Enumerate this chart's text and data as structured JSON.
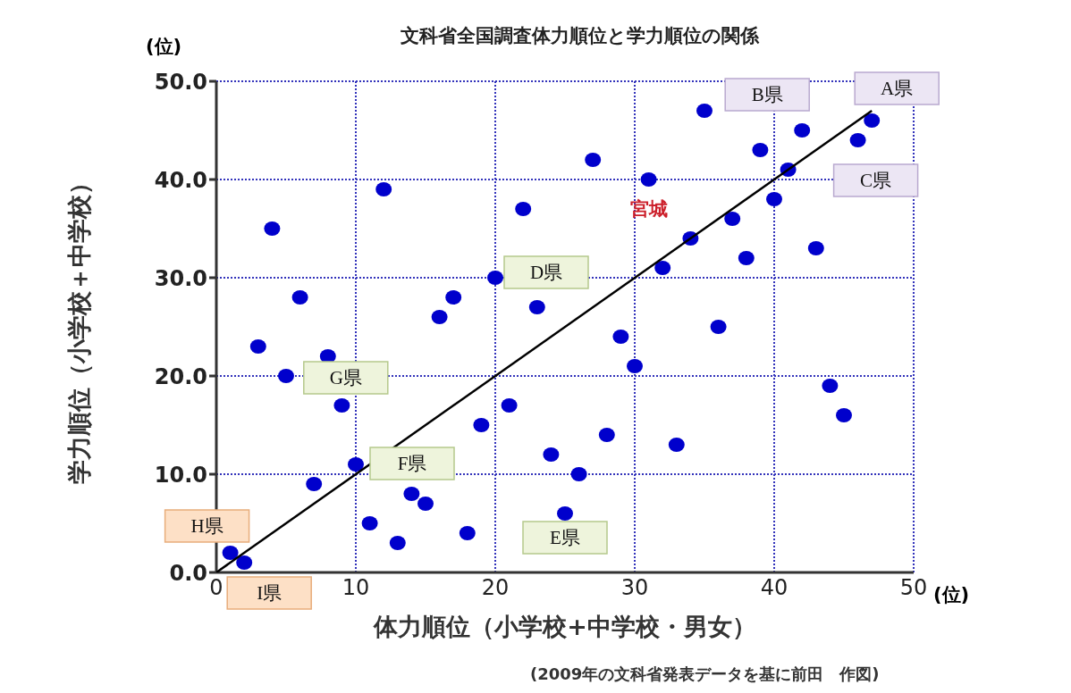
{
  "chart_data": {
    "type": "scatter",
    "title": "文科省全国調査体力順位と学力順位の関係",
    "xlabel": "体力順位（小学校+中学校・男女）",
    "ylabel": "学力順位（小学校＋中学校）",
    "xlim": [
      0,
      50
    ],
    "xticks": [
      0,
      10,
      20,
      30,
      40,
      50
    ],
    "ylim": [
      0,
      50
    ],
    "yticks": [
      {
        "value": 0,
        "label": "0.0"
      },
      {
        "value": 10,
        "label": "10.0"
      },
      {
        "value": 20,
        "label": "20.0"
      },
      {
        "value": 30,
        "label": "30.0"
      },
      {
        "value": 40,
        "label": "40.0"
      },
      {
        "value": 50,
        "label": "50.0"
      }
    ],
    "grid": true,
    "marker": "circle",
    "series": [
      {
        "color": "#0000cc",
        "x": [
          1,
          2,
          3,
          4,
          5,
          6,
          7,
          8,
          9,
          10,
          11,
          12,
          13,
          14,
          15,
          16,
          17,
          18,
          19,
          20,
          21,
          22,
          23,
          24,
          25,
          26,
          27,
          28,
          29,
          30,
          31,
          32,
          33,
          34,
          35,
          36,
          37,
          38,
          39,
          40,
          41,
          42,
          43,
          44,
          45,
          46,
          47
        ],
        "values": [
          2,
          1,
          23,
          35,
          20,
          28,
          9,
          22,
          17,
          11,
          5,
          39,
          3,
          8,
          7,
          26,
          28,
          4,
          15,
          30,
          17,
          37,
          27,
          12,
          6,
          10,
          42,
          14,
          24,
          21,
          40,
          31,
          13,
          34,
          47,
          25,
          36,
          32,
          43,
          38,
          41,
          45,
          33,
          19,
          16,
          44,
          46
        ]
      },
      {
        "type": "line",
        "color": "#000000",
        "x": [
          0,
          47
        ],
        "values": [
          0,
          47
        ],
        "marker": "none"
      }
    ],
    "annotations": [
      {
        "text": "A県",
        "x": 47,
        "y": 46
      },
      {
        "text": "B県",
        "x": 42,
        "y": 45
      },
      {
        "text": "C県",
        "x": 46,
        "y": 44
      },
      {
        "text": "D県",
        "x": 20,
        "y": 30
      },
      {
        "text": "E県",
        "x": 25,
        "y": 6
      },
      {
        "text": "F県",
        "x": 10,
        "y": 11
      },
      {
        "text": "G県",
        "x": 8,
        "y": 22
      },
      {
        "text": "H県",
        "x": 1,
        "y": 2
      },
      {
        "text": "I県",
        "x": 2,
        "y": 1
      },
      {
        "text": "宮城",
        "x": 31,
        "y": 40
      },
      "(位)",
      "(位)",
      "(2009年の文科省発表データを基に前田　作図)"
    ]
  }
}
